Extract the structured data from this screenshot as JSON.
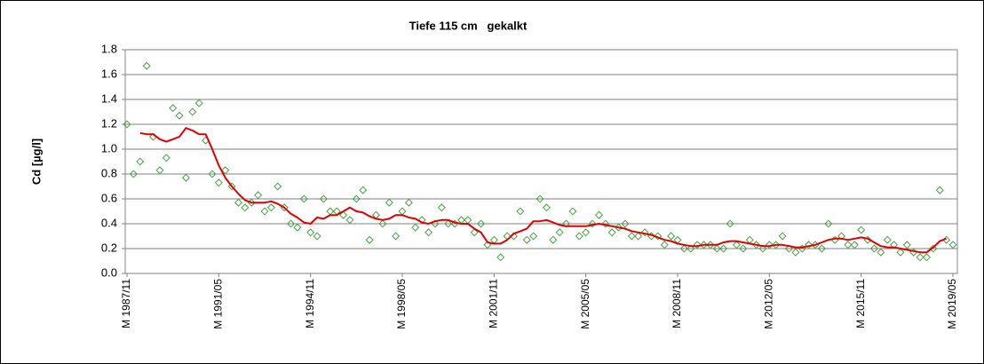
{
  "chart_data": {
    "type": "line",
    "title": "Tiefe 115 cm   gekalkt",
    "y_label": "Cd [µg/l]",
    "categories": [
      "M 1987/11",
      null,
      null,
      null,
      null,
      null,
      null,
      null,
      null,
      null,
      null,
      null,
      null,
      null,
      "M 1991/05",
      null,
      null,
      null,
      null,
      null,
      null,
      null,
      null,
      null,
      null,
      null,
      null,
      null,
      "M 1994/11",
      null,
      null,
      null,
      null,
      null,
      null,
      null,
      null,
      null,
      null,
      null,
      null,
      null,
      "M 1998/05",
      null,
      null,
      null,
      null,
      null,
      null,
      null,
      null,
      null,
      null,
      null,
      null,
      null,
      "M 2001/11",
      null,
      null,
      null,
      null,
      null,
      null,
      null,
      null,
      null,
      null,
      null,
      null,
      null,
      "M 2005/05",
      null,
      null,
      null,
      null,
      null,
      null,
      null,
      null,
      null,
      null,
      null,
      null,
      null,
      "M 2008/11",
      null,
      null,
      null,
      null,
      null,
      null,
      null,
      null,
      null,
      null,
      null,
      null,
      null,
      "M 2012/05",
      null,
      null,
      null,
      null,
      null,
      null,
      null,
      null,
      null,
      null,
      null,
      null,
      null,
      "M 2015/11",
      null,
      null,
      null,
      null,
      null,
      null,
      null,
      null,
      null,
      null,
      null,
      null,
      null,
      "M 2019/05"
    ],
    "series": [
      {
        "style": "markers",
        "color": "#44a044",
        "values": [
          1.2,
          0.8,
          0.9,
          1.67,
          1.1,
          0.83,
          0.93,
          1.33,
          1.27,
          0.77,
          1.3,
          1.37,
          1.07,
          0.8,
          0.73,
          0.83,
          0.7,
          0.57,
          0.53,
          0.57,
          0.63,
          0.5,
          0.53,
          0.7,
          0.53,
          0.4,
          0.37,
          0.6,
          0.33,
          0.3,
          0.6,
          0.5,
          0.5,
          0.47,
          0.43,
          0.6,
          0.67,
          0.27,
          0.47,
          0.4,
          0.57,
          0.3,
          0.5,
          0.57,
          0.37,
          0.43,
          0.33,
          0.4,
          0.53,
          0.4,
          0.4,
          0.43,
          0.43,
          0.33,
          0.4,
          0.23,
          0.27,
          0.13,
          0.3,
          0.3,
          0.5,
          0.27,
          0.3,
          0.6,
          0.53,
          0.27,
          0.33,
          0.4,
          0.5,
          0.3,
          0.33,
          0.4,
          0.47,
          0.4,
          0.33,
          0.37,
          0.4,
          0.3,
          0.3,
          0.33,
          0.3,
          0.3,
          0.23,
          0.3,
          0.27,
          0.2,
          0.2,
          0.23,
          0.23,
          0.23,
          0.2,
          0.2,
          0.4,
          0.23,
          0.2,
          0.27,
          0.23,
          0.2,
          0.23,
          0.23,
          0.3,
          0.2,
          0.17,
          0.2,
          0.23,
          0.23,
          0.2,
          0.4,
          0.27,
          0.3,
          0.23,
          0.23,
          0.35,
          0.27,
          0.2,
          0.17,
          0.27,
          0.23,
          0.17,
          0.23,
          0.17,
          0.13,
          0.13,
          0.2,
          0.67,
          0.27,
          0.23
        ]
      },
      {
        "style": "line",
        "color": "#e00000",
        "values": [
          null,
          null,
          1.13,
          1.12,
          1.12,
          1.08,
          1.06,
          1.08,
          1.1,
          1.17,
          1.15,
          1.12,
          1.12,
          1.0,
          0.87,
          0.77,
          0.7,
          0.64,
          0.59,
          0.57,
          0.57,
          0.57,
          0.58,
          0.56,
          0.53,
          0.48,
          0.45,
          0.41,
          0.4,
          0.45,
          0.44,
          0.47,
          0.47,
          0.5,
          0.53,
          0.5,
          0.49,
          0.46,
          0.44,
          0.43,
          0.44,
          0.47,
          0.47,
          0.45,
          0.44,
          0.41,
          0.4,
          0.42,
          0.43,
          0.43,
          0.41,
          0.4,
          0.4,
          0.36,
          0.33,
          0.25,
          0.24,
          0.24,
          0.27,
          0.32,
          0.34,
          0.36,
          0.42,
          0.42,
          0.43,
          0.41,
          0.39,
          0.38,
          0.38,
          0.38,
          0.38,
          0.39,
          0.4,
          0.39,
          0.38,
          0.37,
          0.36,
          0.34,
          0.33,
          0.32,
          0.31,
          0.29,
          0.27,
          0.26,
          0.24,
          0.23,
          0.22,
          0.22,
          0.23,
          0.23,
          0.23,
          0.25,
          0.26,
          0.26,
          0.25,
          0.24,
          0.23,
          0.22,
          0.22,
          0.23,
          0.23,
          0.22,
          0.21,
          0.21,
          0.22,
          0.23,
          0.25,
          0.27,
          0.28,
          0.28,
          0.27,
          0.28,
          0.29,
          0.28,
          0.25,
          0.22,
          0.21,
          0.21,
          0.2,
          0.19,
          0.18,
          0.17,
          0.17,
          0.21,
          0.26,
          0.28,
          null
        ]
      }
    ],
    "ylim": [
      0,
      1.8
    ],
    "yticks": [
      {
        "value": 0,
        "label": "0.0"
      },
      0.2,
      0.4,
      0.6,
      0.8,
      {
        "value": 1,
        "label": "1.0"
      },
      1.2,
      1.4,
      1.6,
      1.8
    ],
    "grid": true
  }
}
